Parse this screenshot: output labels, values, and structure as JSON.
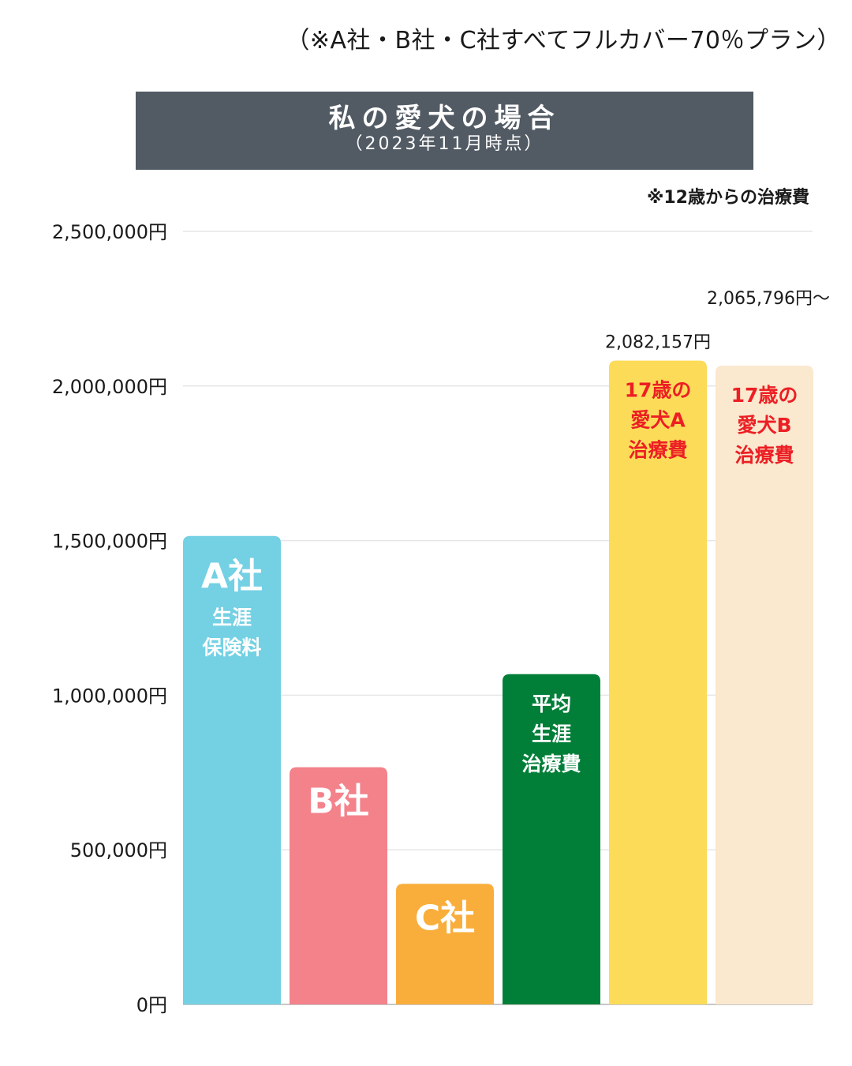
{
  "header": {
    "note": "（※A社・B社・C社すべてフルカバー70％プラン）",
    "title": "私の愛犬の場合",
    "subtitle": "（2023年11月時点）",
    "age_note": "※12歳からの治療費"
  },
  "chart_data": {
    "type": "bar",
    "unit": "円",
    "ylim": [
      0,
      2500000
    ],
    "yticks": [
      {
        "value": 0,
        "label": "0円"
      },
      {
        "value": 500000,
        "label": "500,000円"
      },
      {
        "value": 1000000,
        "label": "1,000,000円"
      },
      {
        "value": 1500000,
        "label": "1,500,000円"
      },
      {
        "value": 2000000,
        "label": "2,000,000円"
      },
      {
        "value": 2500000,
        "label": "2,500,000円"
      }
    ],
    "grid": true,
    "bars": [
      {
        "id": "a",
        "value": 1515000,
        "color": "#74d0e3",
        "text_color": "#ffffff",
        "big": "A社",
        "lines": [
          "生涯",
          "保険料"
        ],
        "value_label": ""
      },
      {
        "id": "b",
        "value": 767000,
        "color": "#f3828b",
        "text_color": "#ffffff",
        "big": "B社",
        "lines": [],
        "value_label": ""
      },
      {
        "id": "c",
        "value": 390000,
        "color": "#f9ae3c",
        "text_color": "#ffffff",
        "big": "C社",
        "lines": [],
        "value_label": ""
      },
      {
        "id": "avg",
        "value": 1068000,
        "color": "#017f39",
        "text_color": "#ffffff",
        "big": "",
        "lines": [
          "平均",
          "生涯",
          "治療費"
        ],
        "value_label": ""
      },
      {
        "id": "dogA",
        "value": 2082157,
        "color": "#fcdb59",
        "text_color": "#ec1f24",
        "big": "",
        "lines": [
          "17歳の",
          "愛犬A",
          "治療費"
        ],
        "value_label": "2,082,157円"
      },
      {
        "id": "dogB",
        "value": 2065796,
        "color": "#fae8cf",
        "text_color": "#ec1f24",
        "big": "",
        "lines": [
          "17歳の",
          "愛犬B",
          "治療費"
        ],
        "value_label": "2,065,796円〜"
      }
    ]
  }
}
